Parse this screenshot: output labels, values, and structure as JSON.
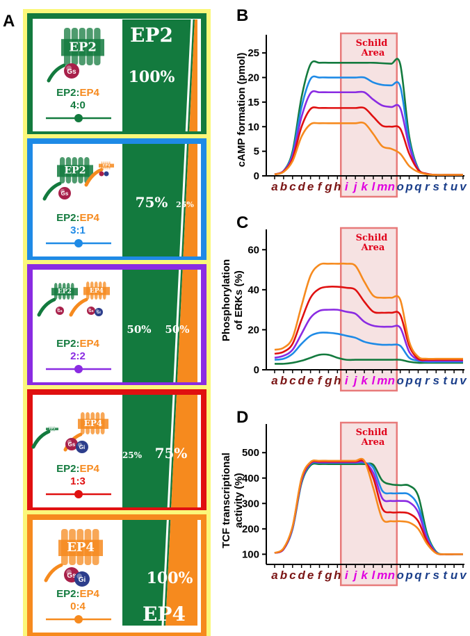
{
  "panel_letters": {
    "A": "A",
    "B": "B",
    "C": "C",
    "D": "D"
  },
  "colors": {
    "ep2_green": "#137a3e",
    "ep4_orange": "#f68a1e",
    "blue": "#1e8ae6",
    "purple": "#8a2be2",
    "red": "#e01010",
    "gs": "#a8204a",
    "gi": "#2c3e8c",
    "schild_fill": "#f6e2e2",
    "schild_border": "#e87a7a"
  },
  "panel_a": {
    "header_ep2": "EP2",
    "footer_ep4": "EP4",
    "ratio_title_ep2": "EP2",
    "ratio_title_sep": ":",
    "ratio_title_ep4": "EP4",
    "rows": [
      {
        "ratio": "4:0",
        "ep2_pct": "100%",
        "ep4_pct": "",
        "color": "#137a3e",
        "slider_pos": 0.5,
        "icon_labels": [
          "EP2",
          "Gs"
        ]
      },
      {
        "ratio": "3:1",
        "ep2_pct": "75%",
        "ep4_pct": "25%",
        "color": "#1e8ae6",
        "slider_pos": 0.5,
        "icon_labels": [
          "EP2",
          "Gs",
          "EP4"
        ]
      },
      {
        "ratio": "2:2",
        "ep2_pct": "50%",
        "ep4_pct": "50%",
        "color": "#8a2be2",
        "slider_pos": 0.5,
        "icon_labels": [
          "EP2",
          "Gs",
          "EP4",
          "Gs",
          "Gi"
        ]
      },
      {
        "ratio": "1:3",
        "ep2_pct": "25%",
        "ep4_pct": "75%",
        "color": "#e01010",
        "slider_pos": 0.5,
        "icon_labels": [
          "EP2",
          "EP4",
          "Gs",
          "Gi"
        ]
      },
      {
        "ratio": "0:4",
        "ep2_pct": "",
        "ep4_pct": "100%",
        "color": "#f68a1e",
        "slider_pos": 0.5,
        "icon_labels": [
          "EP4",
          "Gs",
          "Gi"
        ]
      }
    ]
  },
  "chart_data": [
    {
      "panel": "B",
      "type": "line",
      "ylabel": "cAMP formation (pmol)",
      "ylim": [
        0,
        27
      ],
      "yticks": [
        0,
        5,
        10,
        15,
        20,
        25
      ],
      "x_categories": [
        "a",
        "b",
        "c",
        "d",
        "e",
        "f",
        "g",
        "h",
        "i",
        "j",
        "k",
        "l",
        "m",
        "n",
        "o",
        "p",
        "q",
        "r",
        "s",
        "t",
        "u",
        "v"
      ],
      "annotation": "Schild Area",
      "series": [
        {
          "color": "#137a3e",
          "values": [
            0.3,
            1,
            5,
            16,
            22.7,
            23,
            23,
            23,
            23,
            23,
            23,
            23,
            22.9,
            22.8,
            22.7,
            8,
            1.5,
            0.4,
            0.2,
            0.2,
            0.2,
            0.2
          ]
        },
        {
          "color": "#1e8ae6",
          "values": [
            0.3,
            1,
            4.5,
            14,
            19.7,
            20,
            20,
            20,
            20,
            20,
            20,
            19,
            18.5,
            18.4,
            18.2,
            7,
            1.4,
            0.4,
            0.2,
            0.2,
            0.2,
            0.2
          ]
        },
        {
          "color": "#8a2be2",
          "values": [
            0.3,
            1,
            4,
            12,
            16.8,
            17,
            17,
            17,
            17,
            17,
            17,
            15.5,
            14.3,
            14,
            13.8,
            6,
            1.3,
            0.4,
            0.2,
            0.2,
            0.2,
            0.2
          ]
        },
        {
          "color": "#e01010",
          "values": [
            0.3,
            0.9,
            3.5,
            10,
            13.6,
            13.8,
            13.8,
            13.8,
            13.8,
            13.8,
            13.8,
            12,
            10.2,
            10,
            9.6,
            4.5,
            1.2,
            0.4,
            0.2,
            0.2,
            0.2,
            0.2
          ]
        },
        {
          "color": "#f68a1e",
          "values": [
            0.3,
            0.8,
            3,
            8,
            10.5,
            10.7,
            10.7,
            10.7,
            10.7,
            10.7,
            10.7,
            8.5,
            6,
            5.5,
            4.5,
            2,
            0.8,
            0.3,
            0.2,
            0.2,
            0.2,
            0.2
          ]
        }
      ]
    },
    {
      "panel": "C",
      "type": "line",
      "ylabel": "Phosphorylation of ERKs (%)",
      "ylim": [
        0,
        66
      ],
      "yticks": [
        0,
        20,
        40,
        60
      ],
      "x_categories": [
        "a",
        "b",
        "c",
        "d",
        "e",
        "f",
        "g",
        "h",
        "i",
        "j",
        "k",
        "l",
        "m",
        "n",
        "o",
        "p",
        "q",
        "r",
        "s",
        "t",
        "u",
        "v"
      ],
      "annotation": "Schild Area",
      "series": [
        {
          "color": "#137a3e",
          "values": [
            3,
            3,
            3.5,
            4.5,
            6,
            7.5,
            7.5,
            6,
            5,
            5,
            5,
            5,
            5,
            5,
            5,
            4,
            3.5,
            3.5,
            3.5,
            3.5,
            3.5,
            3.5
          ]
        },
        {
          "color": "#1e8ae6",
          "values": [
            5,
            5.5,
            8,
            13,
            17,
            18.5,
            18.5,
            18,
            17,
            16,
            14,
            13,
            12.5,
            12.5,
            12,
            6,
            4.5,
            4,
            4,
            4,
            4,
            4
          ]
        },
        {
          "color": "#8a2be2",
          "values": [
            6,
            7,
            10,
            18,
            26,
            29.5,
            30,
            30,
            29,
            28,
            24,
            22,
            21.5,
            21.5,
            21,
            9,
            5,
            4.5,
            4.5,
            4.5,
            4.5,
            4.5
          ]
        },
        {
          "color": "#e01010",
          "values": [
            8,
            9,
            13,
            25,
            36,
            40.5,
            41.5,
            41.5,
            41,
            40,
            34,
            29,
            28.5,
            28.5,
            27.5,
            12,
            5.5,
            5,
            5,
            5,
            5,
            5
          ]
        },
        {
          "color": "#f68a1e",
          "values": [
            10,
            11,
            16,
            32,
            47,
            52.5,
            53,
            53,
            53,
            52,
            44,
            37,
            36,
            36,
            35,
            14,
            6.5,
            5.5,
            5.5,
            5.5,
            5.5,
            5.5
          ]
        }
      ]
    },
    {
      "panel": "D",
      "type": "line",
      "ylabel": "TCF transcriptional activity (%)",
      "ylim": [
        60,
        580
      ],
      "yticks": [
        100,
        200,
        300,
        400,
        500
      ],
      "x_categories": [
        "a",
        "b",
        "c",
        "d",
        "e",
        "f",
        "g",
        "h",
        "i",
        "j",
        "k",
        "l",
        "m",
        "n",
        "o",
        "p",
        "q",
        "r",
        "s",
        "t",
        "u",
        "v"
      ],
      "annotation": "Schild Area",
      "series": [
        {
          "color": "#137a3e",
          "values": [
            105,
            120,
            200,
            380,
            450,
            455,
            455,
            455,
            455,
            455,
            455,
            452,
            390,
            375,
            372,
            370,
            330,
            180,
            110,
            100,
            100,
            100
          ]
        },
        {
          "color": "#1e8ae6",
          "values": [
            105,
            120,
            200,
            385,
            455,
            460,
            460,
            460,
            460,
            460,
            460,
            440,
            350,
            340,
            340,
            335,
            290,
            170,
            108,
            100,
            100,
            100
          ]
        },
        {
          "color": "#8a2be2",
          "values": [
            105,
            120,
            205,
            390,
            458,
            462,
            462,
            462,
            462,
            462,
            462,
            420,
            320,
            310,
            310,
            305,
            265,
            160,
            106,
            100,
            100,
            100
          ]
        },
        {
          "color": "#e01010",
          "values": [
            105,
            122,
            208,
            395,
            460,
            465,
            465,
            465,
            465,
            465,
            465,
            400,
            280,
            265,
            265,
            260,
            230,
            150,
            105,
            100,
            100,
            100
          ]
        },
        {
          "color": "#f68a1e",
          "values": [
            105,
            124,
            210,
            400,
            463,
            468,
            468,
            468,
            468,
            468,
            468,
            360,
            240,
            230,
            230,
            225,
            200,
            140,
            104,
            100,
            100,
            100
          ]
        }
      ]
    }
  ]
}
